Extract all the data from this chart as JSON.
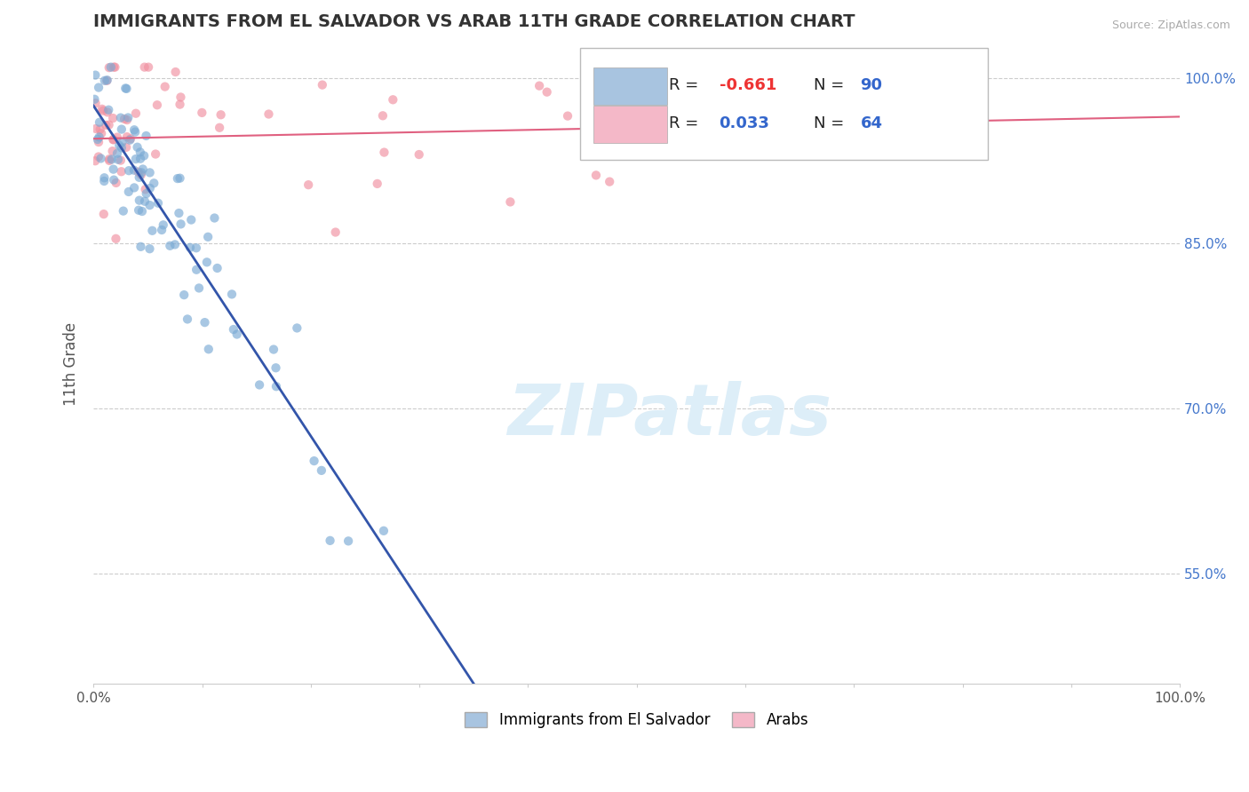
{
  "title": "IMMIGRANTS FROM EL SALVADOR VS ARAB 11TH GRADE CORRELATION CHART",
  "source_text": "Source: ZipAtlas.com",
  "ylabel": "11th Grade",
  "xlim": [
    0.0,
    1.0
  ],
  "ylim": [
    0.45,
    1.03
  ],
  "ytick_positions": [
    0.55,
    0.7,
    0.85,
    1.0
  ],
  "ytick_labels": [
    "55.0%",
    "70.0%",
    "85.0%",
    "100.0%"
  ],
  "legend1_color": "#a8c4e0",
  "legend2_color": "#f4b8c8",
  "scatter1_color": "#7aaad4",
  "scatter2_color": "#f090a0",
  "line1_color": "#3355aa",
  "line2_color": "#e06080",
  "watermark_color": "#ddeef8",
  "background_color": "#ffffff",
  "title_color": "#333333",
  "title_fontsize": 14,
  "ylabel_color": "#555555",
  "source_color": "#aaaaaa",
  "grid_color": "#cccccc",
  "ytick_label_color": "#4477cc",
  "xtick_label_color": "#555555"
}
